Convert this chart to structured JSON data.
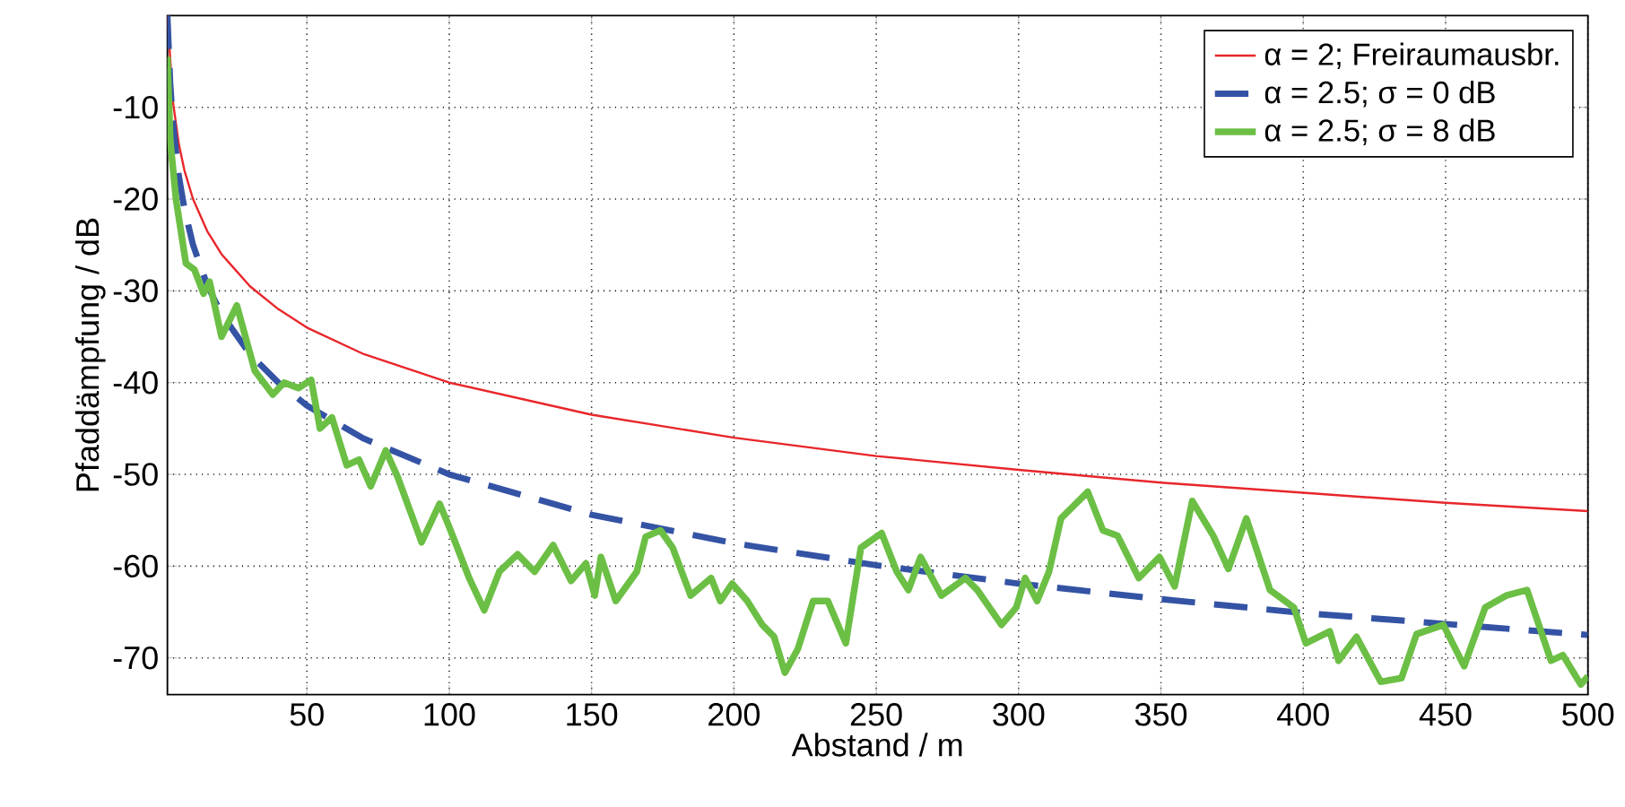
{
  "chart_data": {
    "type": "line",
    "xlabel": "Abstand / m",
    "ylabel": "Pfaddämpfung / dB",
    "xlim": [
      1,
      500
    ],
    "ylim": [
      -74,
      0
    ],
    "xticks": [
      50,
      100,
      150,
      200,
      250,
      300,
      350,
      400,
      450,
      500
    ],
    "yticks": [
      -70,
      -60,
      -50,
      -40,
      -30,
      -20,
      -10
    ],
    "grid": true,
    "legend": "top right",
    "series": [
      {
        "name": "α = 2; Freiraumausbr.",
        "color": "#e8262a",
        "line_style": "solid",
        "x": [
          1,
          3,
          5,
          7,
          10,
          15,
          20,
          30,
          40,
          50,
          70,
          100,
          150,
          200,
          250,
          300,
          350,
          400,
          450,
          500
        ],
        "values": [
          0,
          -9.5,
          -14.0,
          -16.9,
          -20,
          -23.5,
          -26,
          -29.5,
          -32,
          -34,
          -36.9,
          -40,
          -43.5,
          -46,
          -48,
          -49.5,
          -50.9,
          -52,
          -53.1,
          -54
        ]
      },
      {
        "name": "α = 2.5; σ = 0 dB",
        "color": "#3453a4",
        "line_style": "dashed",
        "x": [
          1,
          2,
          3,
          5,
          7,
          10,
          15,
          20,
          30,
          40,
          50,
          70,
          100,
          150,
          200,
          250,
          300,
          350,
          400,
          450,
          500
        ],
        "values": [
          0,
          -7.5,
          -11.9,
          -17.5,
          -21.1,
          -25,
          -29.4,
          -32.5,
          -36.9,
          -40,
          -42.5,
          -46.1,
          -50,
          -54.4,
          -57.5,
          -59.9,
          -61.9,
          -63.6,
          -65.1,
          -66.3,
          -67.5
        ]
      },
      {
        "name": "α = 2.5; σ = 8 dB",
        "color": "#6cbf45",
        "line_style": "solid",
        "x": [
          1,
          2,
          4,
          7.5,
          10.5,
          13.7,
          15.8,
          20,
          25.4,
          31.7,
          38,
          42,
          47,
          51.5,
          54.6,
          58.8,
          64,
          68.3,
          72.4,
          77.7,
          81.9,
          90.3,
          96.6,
          99.7,
          107,
          112.3,
          117.6,
          124,
          130,
          136.5,
          142.8,
          148,
          151.1,
          153.3,
          158.5,
          165.9,
          169,
          174.2,
          178.5,
          184.8,
          192,
          195.2,
          199.4,
          204.7,
          210,
          214.1,
          217.9,
          222.5,
          227.8,
          233,
          239.3,
          244.6,
          251.9,
          257.2,
          261.3,
          265.6,
          272.9,
          281.3,
          285.5,
          294,
          299.2,
          302.3,
          306.5,
          310.7,
          314.9,
          324.3,
          329.6,
          334.8,
          342.2,
          349.5,
          354.8,
          361,
          368.4,
          373.7,
          380,
          388.3,
          396.7,
          400.9,
          409.3,
          412.4,
          418.7,
          427.2,
          434.5,
          439.8,
          449.2,
          456.5,
          463.9,
          471.3,
          478.6,
          487,
          491.2,
          497.5,
          500
        ],
        "values": [
          -4.5,
          -13.6,
          -20,
          -27,
          -27.7,
          -30.3,
          -29,
          -35,
          -31.6,
          -38.7,
          -41.3,
          -40,
          -40.6,
          -39.7,
          -45,
          -43.8,
          -49,
          -48.4,
          -51.3,
          -47.4,
          -50.3,
          -57.4,
          -53.2,
          -55.5,
          -61.3,
          -64.8,
          -60.6,
          -58.7,
          -60.6,
          -57.7,
          -61.6,
          -59.7,
          -63.2,
          -59,
          -63.8,
          -60.6,
          -56.8,
          -56.1,
          -58,
          -63.2,
          -61.3,
          -63.8,
          -61.9,
          -63.8,
          -66.4,
          -67.7,
          -71.6,
          -69,
          -63.8,
          -63.8,
          -68.4,
          -58,
          -56.4,
          -60.6,
          -62.6,
          -59,
          -63.2,
          -61.3,
          -62.6,
          -66.4,
          -64.5,
          -61.3,
          -63.8,
          -60.6,
          -54.8,
          -51.9,
          -56.1,
          -56.7,
          -61.3,
          -59,
          -62.2,
          -52.9,
          -56.7,
          -60.3,
          -54.8,
          -62.6,
          -64.5,
          -68.4,
          -67.1,
          -70.3,
          -67.7,
          -72.6,
          -72.2,
          -67.4,
          -66.4,
          -70.9,
          -64.5,
          -63.2,
          -62.6,
          -70.3,
          -69.7,
          -72.9,
          -72
        ]
      }
    ]
  }
}
